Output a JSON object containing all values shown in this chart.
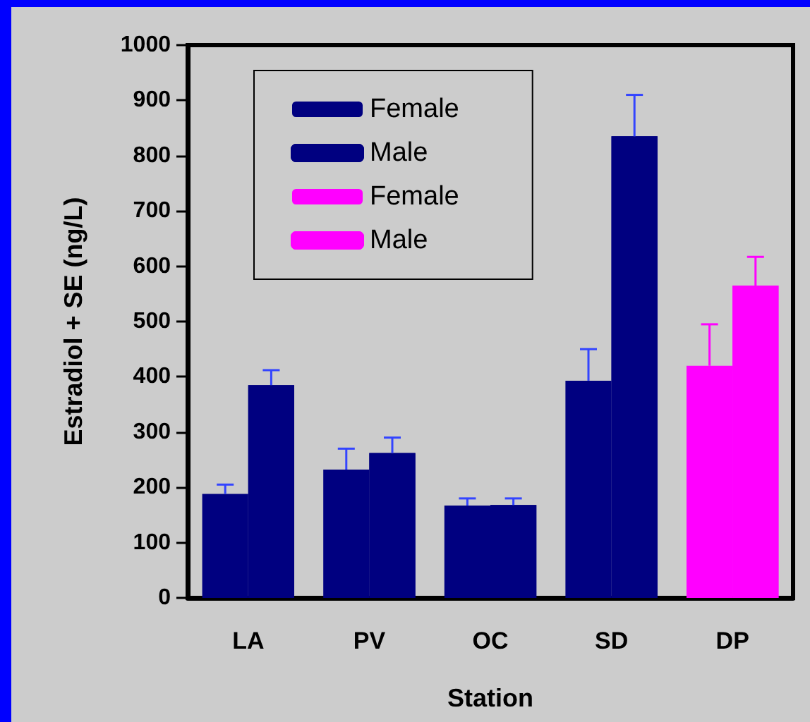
{
  "chart_data": {
    "type": "bar",
    "xlabel": "Station",
    "ylabel": "Estradiol + SE (ng/L)",
    "categories": [
      "LA",
      "PV",
      "OC",
      "SD",
      "DP"
    ],
    "series": [
      {
        "name": "Female",
        "color": "#000080",
        "values": [
          188,
          232,
          167,
          393,
          null
        ],
        "errors": [
          [
            188,
            205
          ],
          [
            232,
            270
          ],
          [
            167,
            180
          ],
          [
            393,
            450
          ],
          null
        ]
      },
      {
        "name": "Male",
        "color": "#000080",
        "values": [
          385,
          262,
          168,
          835,
          null
        ],
        "errors": [
          [
            385,
            412
          ],
          [
            262,
            290
          ],
          [
            168,
            180
          ],
          [
            835,
            910
          ],
          null
        ]
      },
      {
        "name": "Female",
        "color": "#ff00ff",
        "values": [
          null,
          null,
          null,
          null,
          420
        ],
        "errors": [
          null,
          null,
          null,
          null,
          [
            420,
            495
          ]
        ]
      },
      {
        "name": "Male",
        "color": "#ff00ff",
        "values": [
          null,
          null,
          null,
          null,
          565
        ],
        "errors": [
          null,
          null,
          null,
          null,
          [
            565,
            617
          ]
        ]
      }
    ],
    "ylim": [
      0,
      1000
    ],
    "yticks": [
      0,
      100,
      200,
      300,
      400,
      500,
      600,
      700,
      800,
      900,
      1000
    ],
    "grid": false,
    "legend": "top left"
  }
}
